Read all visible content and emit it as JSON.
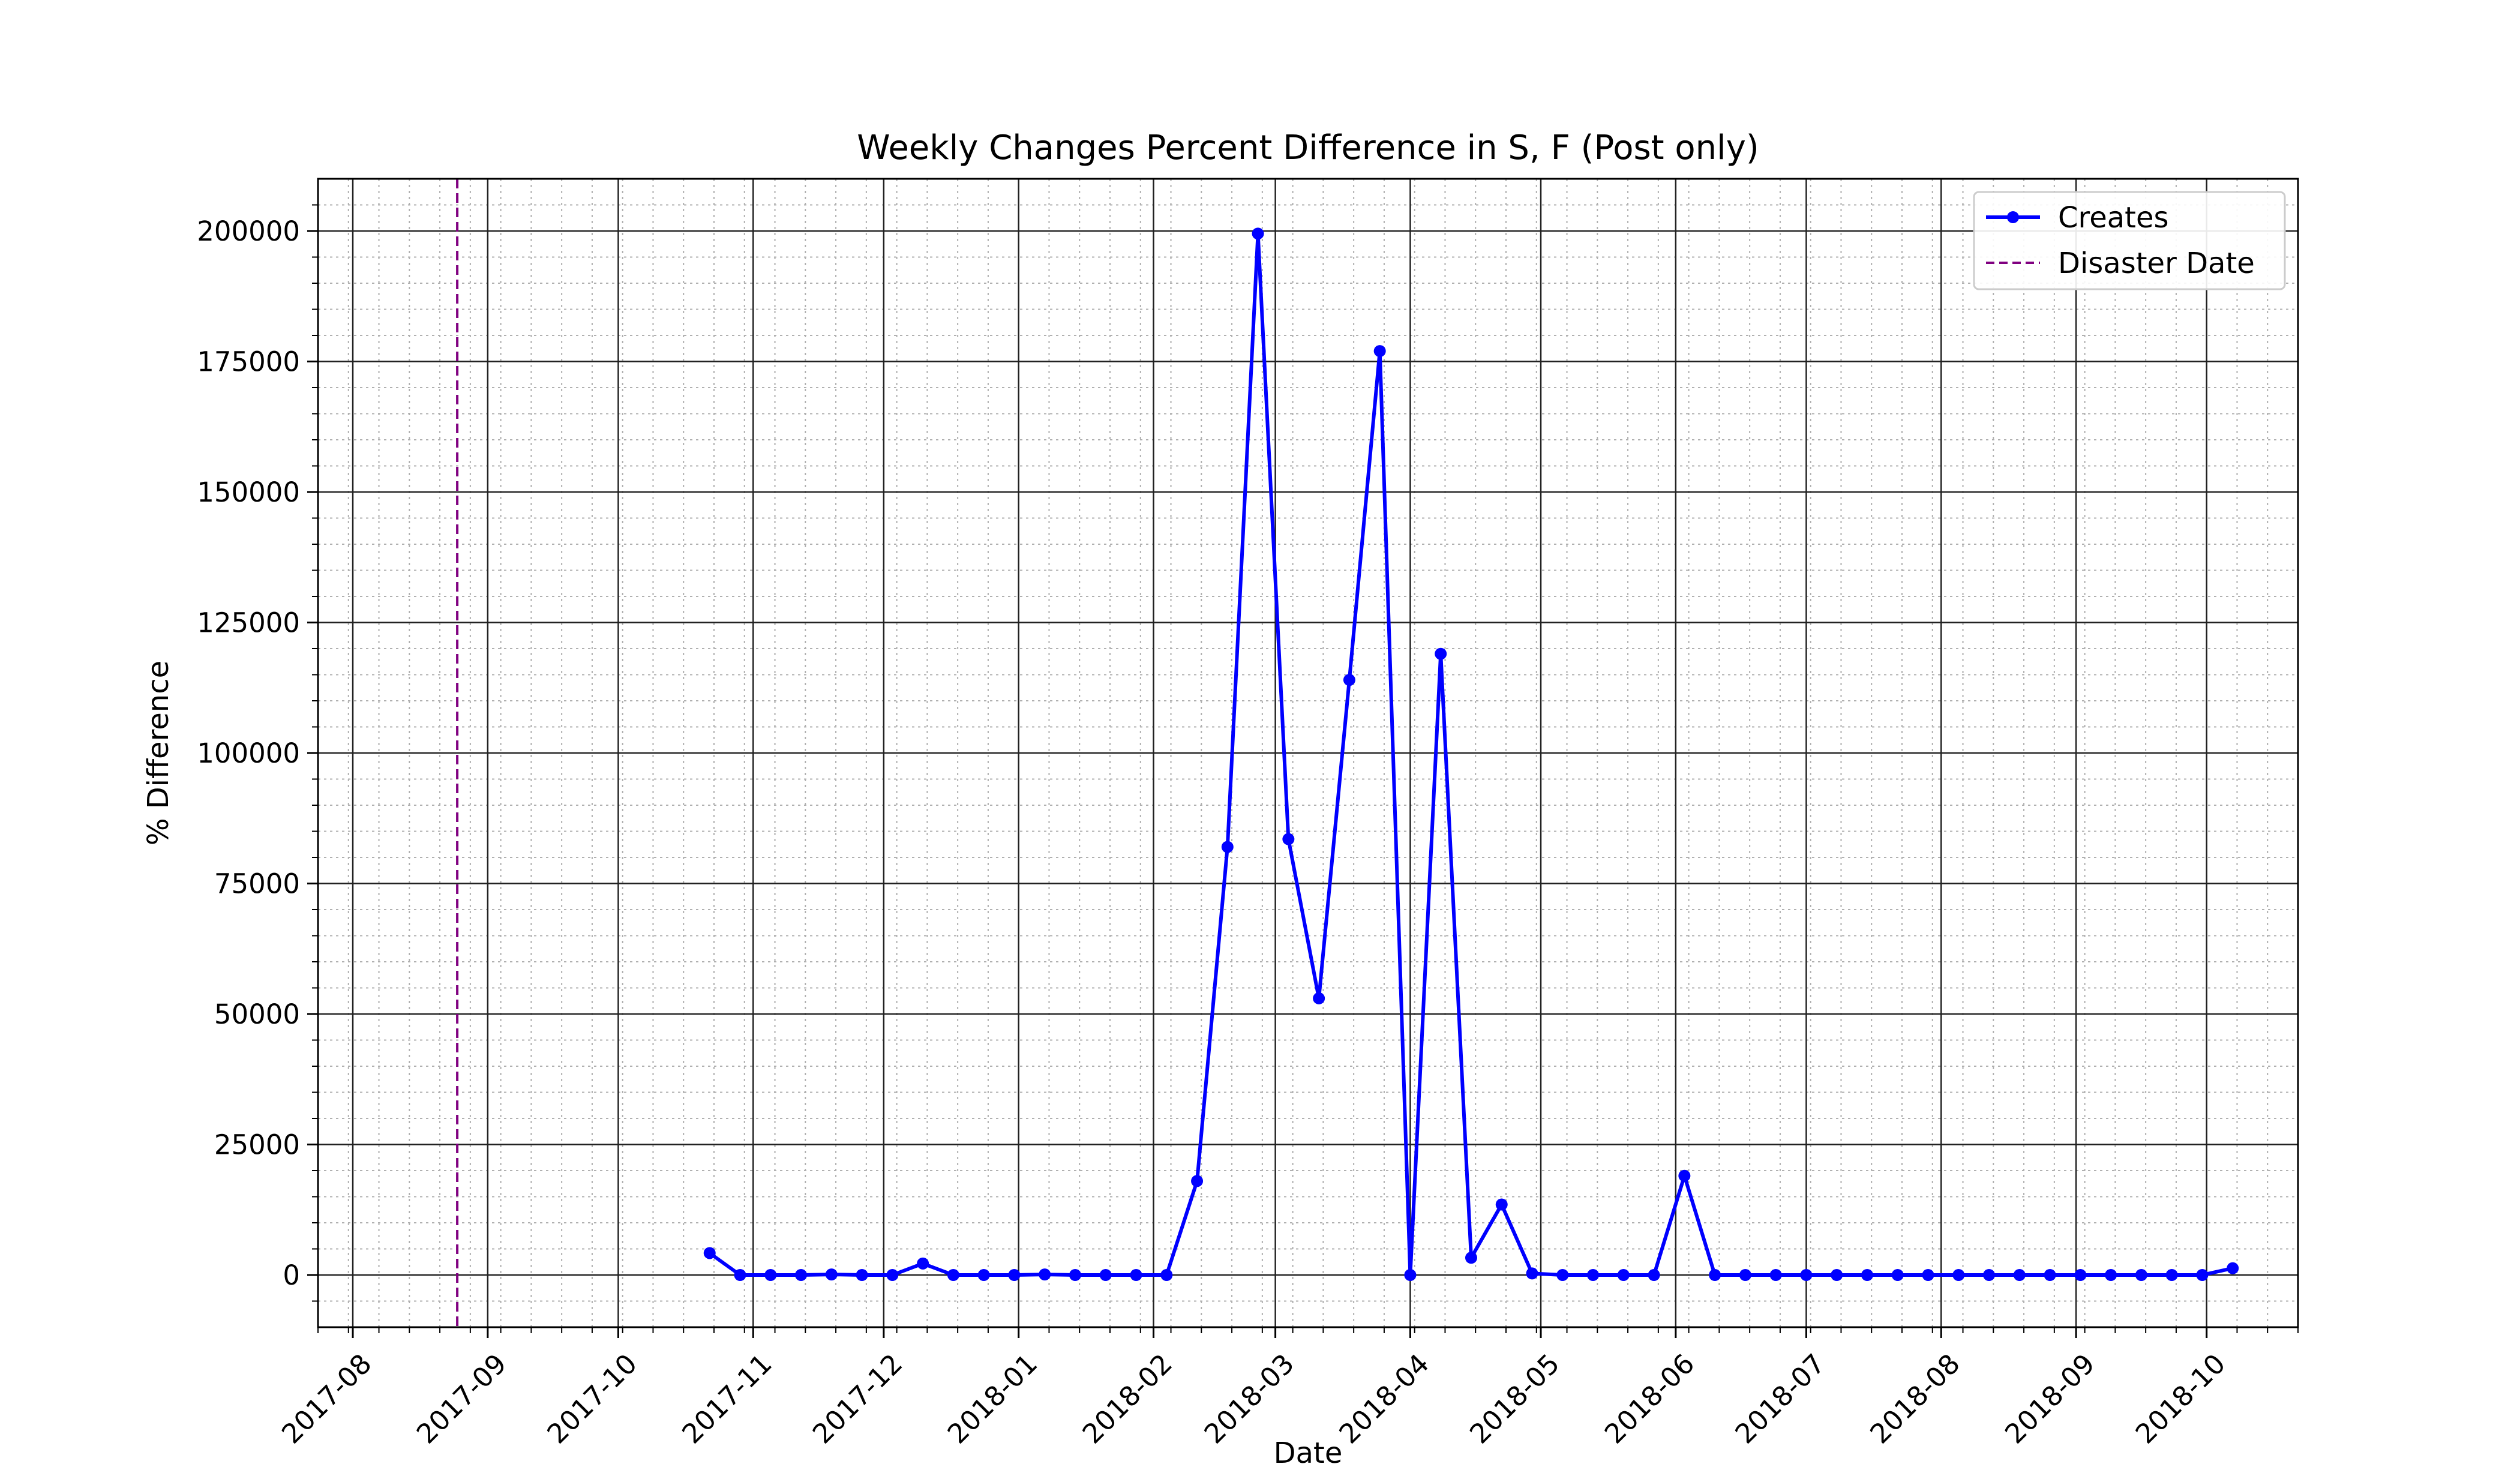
{
  "chart_data": {
    "type": "line",
    "title": "Weekly Changes Percent Difference in S, F (Post only)",
    "xlabel": "Date",
    "ylabel": "% Difference",
    "x_range": [
      "2017-07-24",
      "2018-10-22"
    ],
    "ylim": [
      -10000,
      210000
    ],
    "x_ticks": [
      "2017-08",
      "2017-09",
      "2017-10",
      "2017-11",
      "2017-12",
      "2018-01",
      "2018-02",
      "2018-03",
      "2018-04",
      "2018-05",
      "2018-06",
      "2018-07",
      "2018-08",
      "2018-09",
      "2018-10"
    ],
    "y_ticks": [
      0,
      25000,
      50000,
      75000,
      100000,
      125000,
      150000,
      175000,
      200000
    ],
    "grid": true,
    "minor_grid": true,
    "legend_position": "top-right",
    "series": [
      {
        "name": "Creates",
        "color": "#0000ff",
        "marker": "circle",
        "x": [
          "2017-10-22",
          "2017-10-29",
          "2017-11-05",
          "2017-11-12",
          "2017-11-19",
          "2017-11-26",
          "2017-12-03",
          "2017-12-10",
          "2017-12-17",
          "2017-12-24",
          "2017-12-31",
          "2018-01-07",
          "2018-01-14",
          "2018-01-21",
          "2018-01-28",
          "2018-02-04",
          "2018-02-11",
          "2018-02-18",
          "2018-02-25",
          "2018-03-04",
          "2018-03-11",
          "2018-03-18",
          "2018-03-25",
          "2018-04-01",
          "2018-04-08",
          "2018-04-15",
          "2018-04-22",
          "2018-04-29",
          "2018-05-06",
          "2018-05-13",
          "2018-05-20",
          "2018-05-27",
          "2018-06-03",
          "2018-06-10",
          "2018-06-17",
          "2018-06-24",
          "2018-07-01",
          "2018-07-08",
          "2018-07-15",
          "2018-07-22",
          "2018-07-29",
          "2018-08-05",
          "2018-08-12",
          "2018-08-19",
          "2018-08-26",
          "2018-09-02",
          "2018-09-09",
          "2018-09-16",
          "2018-09-23",
          "2018-09-30",
          "2018-10-07"
        ],
        "values": [
          4200,
          0,
          0,
          0,
          100,
          0,
          0,
          2200,
          0,
          0,
          0,
          100,
          0,
          0,
          0,
          0,
          18000,
          82000,
          199500,
          83500,
          53000,
          114000,
          177000,
          0,
          119000,
          3300,
          13500,
          300,
          0,
          0,
          0,
          0,
          19000,
          0,
          0,
          0,
          0,
          0,
          0,
          0,
          0,
          0,
          0,
          0,
          0,
          0,
          0,
          0,
          0,
          0,
          1300
        ]
      },
      {
        "name": "Disaster Date",
        "color": "#800080",
        "style": "dashed",
        "x_vline": "2017-08-25"
      }
    ]
  }
}
